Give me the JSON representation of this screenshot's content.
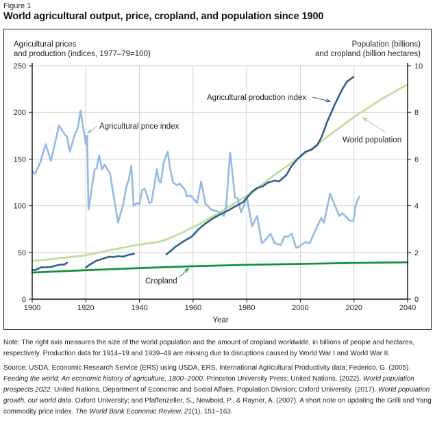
{
  "figure_label": "Figure 1",
  "title": "World agricultural output, price, cropland, and population since 1900",
  "note": "Note: The right axis measures the size of the world population and the amount of cropland worldwide, in billions of people and hectares, respectively. Production data for 1914–19 and 1939–49 are missing due to disruptions caused by World War I and World War II.",
  "source": {
    "parts": [
      {
        "text": "Source: USDA, Economic Research Service (ERS) using USDA, ERS, International Agricultural Productivity data; Federico, G. (2005). ",
        "italic": false
      },
      {
        "text": "Feeding the world: An economic history of agriculture, 1800–2000",
        "italic": true
      },
      {
        "text": ". Princeton University Press; United Nations. (2022). ",
        "italic": false
      },
      {
        "text": "World population prospects 2022",
        "italic": true
      },
      {
        "text": ". United Nations, Department of Economic and Social Affairs, Population Division; Oxford University. (2017). ",
        "italic": false
      },
      {
        "text": "World population growth, our world data",
        "italic": true
      },
      {
        "text": ". Oxford University; and Pfaffenzeller, S., Newbold, P., & Rayner, A. (2007). A short note on updating the Grilli and Yang commodity price index. ",
        "italic": false
      },
      {
        "text": "The World Bank Economic Review, 21",
        "italic": true
      },
      {
        "text": "(1), 151–163.",
        "italic": false
      }
    ]
  },
  "chart_data": {
    "type": "line",
    "title": "World agricultural output, price, cropland, and population since 1900",
    "xlabel": "Year",
    "ylabel_left": [
      "Agricultural prices",
      "and production (indices, 1977–79=100)"
    ],
    "ylabel_right": [
      "Population (billions)",
      "and cropland (billion hectares)"
    ],
    "xlim": [
      1900,
      2040
    ],
    "ylim_left": [
      0,
      250
    ],
    "ylim_right": [
      0,
      10
    ],
    "x_ticks": [
      1900,
      1920,
      1940,
      1960,
      1980,
      2000,
      2020,
      2040
    ],
    "y_ticks_left": [
      0,
      50,
      100,
      150,
      200,
      250
    ],
    "y_ticks_right": [
      0,
      2,
      4,
      6,
      8,
      10
    ],
    "grid": true,
    "colors": {
      "price": "#94b9e3",
      "production": "#2f5f8a",
      "population": "#c3dc9a",
      "cropland": "#11913f"
    },
    "series": [
      {
        "name": "Agricultural price index",
        "axis": "left",
        "color_key": "price",
        "label": "Agricultural price index",
        "segments": [
          [
            [
              1900,
              137
            ],
            [
              1901,
              134
            ],
            [
              1903,
              146
            ],
            [
              1905,
              166
            ],
            [
              1907,
              148
            ],
            [
              1910,
              186
            ],
            [
              1912,
              177
            ],
            [
              1913,
              174
            ],
            [
              1914,
              158
            ],
            [
              1916,
              177
            ],
            [
              1917,
              183
            ],
            [
              1918,
              202
            ],
            [
              1920,
              166
            ],
            [
              1920.5,
              175
            ],
            [
              1921,
              96
            ],
            [
              1923.3,
              139
            ],
            [
              1924,
              140
            ],
            [
              1925,
              154
            ],
            [
              1926,
              139
            ],
            [
              1927,
              144
            ],
            [
              1929,
              135
            ],
            [
              1930.5,
              108
            ],
            [
              1932,
              82
            ],
            [
              1934,
              102
            ],
            [
              1935,
              119
            ],
            [
              1936,
              128
            ],
            [
              1937,
              143
            ],
            [
              1937.8,
              100
            ],
            [
              1939,
              103
            ],
            [
              1940,
              102
            ],
            [
              1941,
              117
            ],
            [
              1942,
              118
            ],
            [
              1943.7,
              103
            ],
            [
              1944.5,
              104
            ],
            [
              1946.5,
              139
            ],
            [
              1947.3,
              126
            ],
            [
              1948,
              125
            ],
            [
              1949,
              146
            ],
            [
              1950.5,
              158
            ],
            [
              1951.5,
              139
            ],
            [
              1952.5,
              125
            ],
            [
              1954,
              122
            ],
            [
              1955,
              124
            ],
            [
              1957,
              117
            ],
            [
              1957.7,
              110
            ],
            [
              1959,
              111
            ],
            [
              1960,
              108
            ],
            [
              1961.5,
              103
            ],
            [
              1963,
              126
            ],
            [
              1964.6,
              102
            ],
            [
              1965.4,
              100
            ],
            [
              1966.7,
              96
            ],
            [
              1967.7,
              95
            ],
            [
              1969,
              94
            ],
            [
              1970.7,
              92
            ],
            [
              1971.5,
              89
            ],
            [
              1972.3,
              98
            ],
            [
              1973.8,
              157
            ],
            [
              1974.6,
              137
            ],
            [
              1975.6,
              109
            ],
            [
              1976.6,
              108
            ],
            [
              1977.9,
              93
            ],
            [
              1979.2,
              102
            ],
            [
              1980,
              111
            ],
            [
              1981.2,
              91
            ],
            [
              1982,
              78
            ],
            [
              1983.9,
              89
            ],
            [
              1985.6,
              60
            ],
            [
              1986.5,
              62
            ],
            [
              1988.9,
              70
            ],
            [
              1990.4,
              60
            ],
            [
              1992.7,
              58
            ],
            [
              1994,
              67
            ],
            [
              1995.5,
              67
            ],
            [
              1996.8,
              70
            ],
            [
              1998.4,
              55
            ],
            [
              1999.4,
              56
            ],
            [
              2001.7,
              61
            ],
            [
              2003.5,
              60
            ],
            [
              2005.5,
              73
            ],
            [
              2007.8,
              87
            ],
            [
              2008.8,
              82
            ],
            [
              2011.1,
              113
            ],
            [
              2014.5,
              89
            ],
            [
              2015.7,
              92
            ],
            [
              2018.5,
              84
            ],
            [
              2019.8,
              84
            ],
            [
              2020.6,
              100
            ],
            [
              2021.9,
              110
            ]
          ]
        ]
      },
      {
        "name": "Agricultural production index",
        "axis": "left",
        "color_key": "production",
        "label": "Agricultural production index",
        "segments": [
          [
            [
              1900,
              31.5
            ],
            [
              1901,
              31
            ],
            [
              1903.3,
              34
            ],
            [
              1905,
              34
            ],
            [
              1907,
              34.5
            ],
            [
              1909,
              36
            ],
            [
              1910.5,
              37
            ],
            [
              1912,
              37
            ],
            [
              1913,
              39
            ]
          ],
          [
            [
              1920,
              34
            ],
            [
              1921.5,
              37
            ],
            [
              1923.8,
              41
            ],
            [
              1926,
              43
            ],
            [
              1928.9,
              45.5
            ],
            [
              1930,
              45
            ],
            [
              1932,
              46
            ],
            [
              1934,
              45.5
            ],
            [
              1936,
              47.5
            ],
            [
              1938,
              48.5
            ]
          ],
          [
            [
              1950,
              48
            ],
            [
              1951.4,
              51
            ],
            [
              1953.4,
              56
            ],
            [
              1956.5,
              62
            ],
            [
              1959.5,
              67
            ],
            [
              1962.1,
              75
            ],
            [
              1964.6,
              81
            ],
            [
              1967.7,
              87
            ],
            [
              1971,
              92
            ],
            [
              1973.1,
              95
            ],
            [
              1976.1,
              100
            ],
            [
              1978.7,
              104
            ],
            [
              1982,
              115
            ],
            [
              1983.8,
              119
            ],
            [
              1986,
              121
            ],
            [
              1988,
              125
            ],
            [
              1990.7,
              127
            ],
            [
              1992,
              126
            ],
            [
              1994.8,
              133
            ],
            [
              1996.6,
              142
            ],
            [
              1998.9,
              150
            ],
            [
              2000.4,
              154
            ],
            [
              2002,
              158
            ],
            [
              2004.2,
              160
            ],
            [
              2006.3,
              165
            ],
            [
              2008,
              174
            ],
            [
              2010,
              190
            ],
            [
              2011.4,
              199
            ],
            [
              2012.6,
              207
            ],
            [
              2013.6,
              213
            ],
            [
              2015.7,
              225
            ],
            [
              2017.4,
              233
            ],
            [
              2019.8,
              238
            ]
          ]
        ]
      },
      {
        "name": "World population",
        "axis": "right",
        "color_key": "population",
        "label": "World population",
        "segments": [
          [
            [
              1900,
              1.64
            ],
            [
              1910,
              1.75
            ],
            [
              1920,
              1.88
            ],
            [
              1929,
              2.1
            ],
            [
              1938,
              2.3
            ],
            [
              1946.8,
              2.45
            ],
            [
              1950,
              2.55
            ],
            [
              1955,
              2.8
            ],
            [
              1962,
              3.2
            ],
            [
              1969.7,
              3.7
            ],
            [
              1976,
              4.15
            ],
            [
              1982.5,
              4.6
            ],
            [
              1990,
              5.3
            ],
            [
              2000,
              6.1
            ],
            [
              2010,
              6.95
            ],
            [
              2020,
              7.8
            ],
            [
              2030,
              8.55
            ],
            [
              2040,
              9.2
            ]
          ]
        ]
      },
      {
        "name": "Cropland",
        "axis": "right",
        "color_key": "cropland",
        "label": "Cropland",
        "segments": [
          [
            [
              1900,
              1.14
            ],
            [
              1920,
              1.24
            ],
            [
              1940,
              1.33
            ],
            [
              1960,
              1.41
            ],
            [
              1980,
              1.47
            ],
            [
              2000,
              1.51
            ],
            [
              2020,
              1.55
            ],
            [
              2040,
              1.58
            ]
          ]
        ]
      }
    ]
  }
}
